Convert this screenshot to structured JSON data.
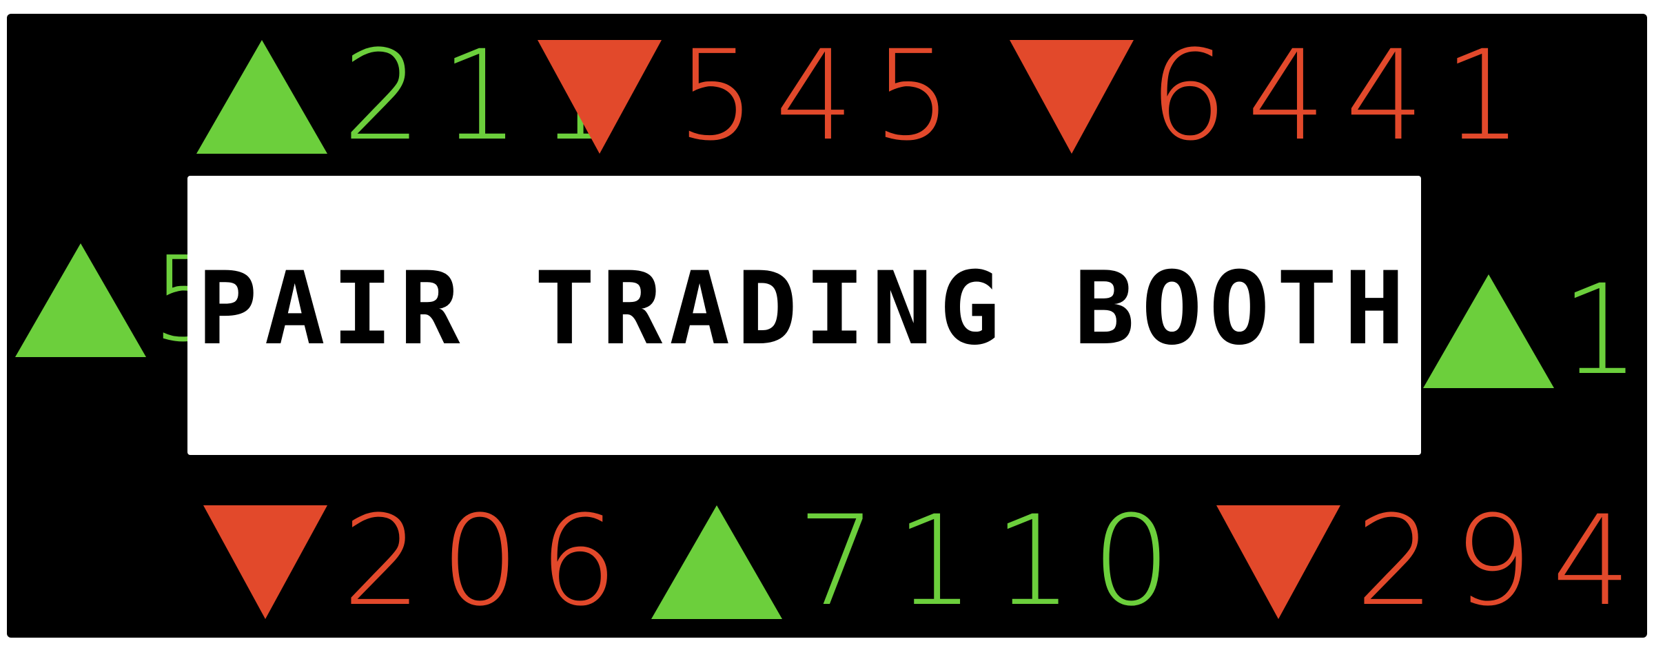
{
  "sign": {
    "title": "PAIR TRADING BOOTH"
  },
  "tickers": [
    {
      "direction": "up",
      "value": "211"
    },
    {
      "direction": "down",
      "value": "545"
    },
    {
      "direction": "down",
      "value": "6441"
    },
    {
      "direction": "up",
      "value": "5"
    },
    {
      "direction": "up",
      "value": "1"
    },
    {
      "direction": "down",
      "value": "206"
    },
    {
      "direction": "up",
      "value": "7110"
    },
    {
      "direction": "down",
      "value": "294"
    }
  ],
  "colors": {
    "background": "#000000",
    "up": "#6ccf3c",
    "down": "#e2492b",
    "sign": "#ffffff"
  },
  "icons": {
    "up": "triangle-up-icon",
    "down": "triangle-down-icon"
  }
}
